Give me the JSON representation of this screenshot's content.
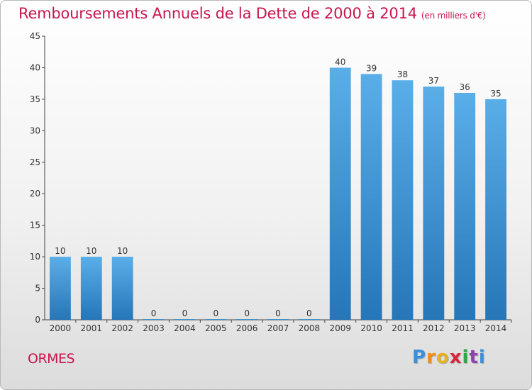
{
  "header": {
    "title": "Remboursements Annuels de la Dette de 2000 à 2014",
    "subtitle": "(en milliers d'€)"
  },
  "footer": {
    "place": "ORMES",
    "logo_letters": [
      "P",
      "r",
      "o",
      "x",
      "i",
      "t",
      "i"
    ],
    "logo_colors": [
      "#3a8fd8",
      "#f28c1c",
      "#e8b21e",
      "#d7263d",
      "#2aa84a",
      "#8e44ad",
      "#3a8fd8"
    ]
  },
  "chart_data": {
    "type": "bar",
    "title": "Remboursements Annuels de la Dette de 2000 à 2014",
    "subtitle": "(en milliers d'€)",
    "categories": [
      "2000",
      "2001",
      "2002",
      "2003",
      "2004",
      "2005",
      "2006",
      "2007",
      "2008",
      "2009",
      "2010",
      "2011",
      "2012",
      "2013",
      "2014"
    ],
    "values": [
      10,
      10,
      10,
      0,
      0,
      0,
      0,
      0,
      0,
      40,
      39,
      38,
      37,
      36,
      35
    ],
    "ylim": [
      0,
      45
    ],
    "yticks": [
      0,
      5,
      10,
      15,
      20,
      25,
      30,
      35,
      40,
      45
    ],
    "grid": false,
    "bar_color_top": "#5aaee8",
    "bar_color_bottom": "#2676b8"
  }
}
